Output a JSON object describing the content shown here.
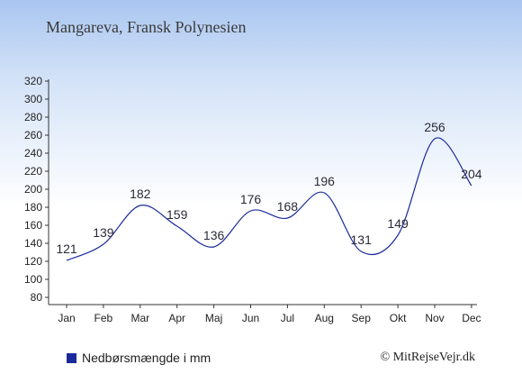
{
  "title": "Mangareva, Fransk Polynesien",
  "legend_label": "Nedbørsmængde i mm",
  "credit": "© MitRejseVejr.dk",
  "chart_data": {
    "type": "line",
    "title": "Mangareva, Fransk Polynesien",
    "categories": [
      "Jan",
      "Feb",
      "Mar",
      "Apr",
      "Maj",
      "Jun",
      "Jul",
      "Aug",
      "Sep",
      "Okt",
      "Nov",
      "Dec"
    ],
    "series": [
      {
        "name": "Nedbørsmængde i mm",
        "values": [
          121,
          139,
          182,
          159,
          136,
          176,
          168,
          196,
          131,
          149,
          256,
          204
        ],
        "color": "#1a2a9c"
      }
    ],
    "y_ticks": [
      80,
      100,
      120,
      140,
      160,
      180,
      200,
      220,
      240,
      260,
      280,
      300,
      320
    ],
    "ylim": [
      80,
      320
    ],
    "xlabel": "",
    "ylabel": "",
    "grid": false,
    "legend_position": "bottom-left"
  }
}
